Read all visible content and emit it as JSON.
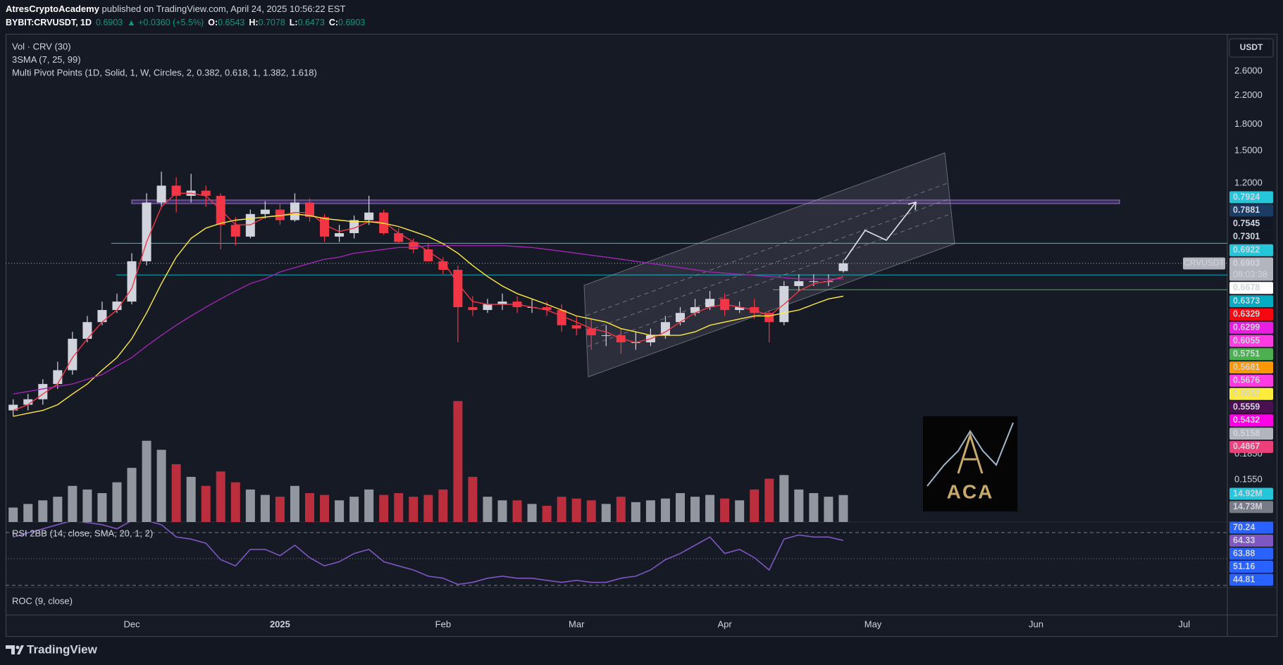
{
  "chart_data": {
    "type": "candlestick",
    "header": {
      "author": "AtresCryptoAcademy",
      "published": " published on TradingView.com, April 24, 2025 10:56:22 EST",
      "symbol": "BYBIT:CRVUSDT, 1D",
      "last": 0.6903,
      "change": "▲ +0.0360 (+5.5%)",
      "ohlc": [
        {
          "label": "O:",
          "value": 0.6543
        },
        {
          "label": "H:",
          "value": 0.7078
        },
        {
          "label": "L:",
          "value": 0.6473
        },
        {
          "label": "C:",
          "value": 0.6903
        }
      ]
    },
    "legend": [
      "Vol · CRV (30)",
      "3SMA (7, 25, 99)",
      "Multi Pivot Points (1D, Solid, 1, W, Circles, 2, 0.382, 0.618, 1, 1.382, 1.618)"
    ],
    "currency": "USDT",
    "categories": [
      null,
      null,
      null,
      null,
      null,
      null,
      null,
      null,
      "Dec",
      null,
      null,
      null,
      null,
      null,
      null,
      null,
      null,
      null,
      "2025",
      null,
      null,
      null,
      null,
      null,
      null,
      null,
      null,
      null,
      null,
      "Feb",
      null,
      null,
      null,
      null,
      null,
      null,
      null,
      null,
      "Mar",
      null,
      null,
      null,
      null,
      null,
      null,
      null,
      null,
      null,
      "Apr",
      null,
      null,
      null,
      null,
      null,
      null,
      null,
      null,
      null,
      "May",
      null,
      null,
      null,
      null,
      null,
      null,
      null,
      null,
      null,
      null,
      "Jun",
      null,
      null,
      null,
      null,
      null,
      null,
      null,
      null,
      null,
      "Jul"
    ],
    "log_scale": true,
    "grid": false,
    "ylim": [
      0.1157,
      3.35
    ],
    "yticks": [
      {
        "value": 2.6,
        "label": "2.6000"
      },
      {
        "value": 2.2,
        "label": "2.2000"
      },
      {
        "value": 1.8,
        "label": "1.8000"
      },
      {
        "value": 1.5,
        "label": "1.5000"
      },
      {
        "value": 1.2,
        "label": "1.2000"
      },
      {
        "value": 0.185,
        "label": "0.1850"
      },
      {
        "value": 0.155,
        "label": "0.1550"
      }
    ],
    "candles": {
      "up_color": "#d1d4dc",
      "down_color": "#f23645",
      "open": [
        0.25,
        0.26,
        0.27,
        0.3,
        0.33,
        0.41,
        0.46,
        0.5,
        0.53,
        0.7,
        1.05,
        1.18,
        1.1,
        1.14,
        1.1,
        0.9,
        0.83,
        0.97,
        1.0,
        0.93,
        1.05,
        0.95,
        0.83,
        0.85,
        0.93,
        0.98,
        0.85,
        0.8,
        0.76,
        0.7,
        0.66,
        0.51,
        0.5,
        0.52,
        0.53,
        0.51,
        0.51,
        0.5,
        0.45,
        0.44,
        0.42,
        0.42,
        0.4,
        0.4,
        0.42,
        0.46,
        0.49,
        0.51,
        0.54,
        0.5,
        0.51,
        0.49,
        0.46,
        0.59,
        0.61,
        0.61,
        0.6543,
        null,
        null,
        null,
        null,
        null,
        null,
        null,
        null,
        null,
        null,
        null,
        null,
        null,
        null,
        null,
        null,
        null,
        null,
        null,
        null,
        null,
        null,
        null
      ],
      "high": [
        0.27,
        0.28,
        0.31,
        0.35,
        0.43,
        0.48,
        0.53,
        0.56,
        0.74,
        1.12,
        1.3,
        1.25,
        1.28,
        1.18,
        1.12,
        0.95,
        1.0,
        1.06,
        1.04,
        1.12,
        1.08,
        0.97,
        0.9,
        0.96,
        1.1,
        1.0,
        0.88,
        0.82,
        0.79,
        0.72,
        0.68,
        0.55,
        0.54,
        0.56,
        0.55,
        0.54,
        0.53,
        0.52,
        0.48,
        0.47,
        0.45,
        0.44,
        0.43,
        0.44,
        0.48,
        0.51,
        0.54,
        0.57,
        0.56,
        0.53,
        0.54,
        0.5,
        0.61,
        0.64,
        0.64,
        0.64,
        0.7078,
        null,
        null,
        null,
        null,
        null,
        null,
        null,
        null,
        null,
        null,
        null,
        null,
        null,
        null,
        null,
        null,
        null,
        null,
        null,
        null,
        null,
        null,
        null
      ],
      "low": [
        0.24,
        0.25,
        0.26,
        0.29,
        0.32,
        0.4,
        0.45,
        0.49,
        0.52,
        0.68,
        1.02,
        0.98,
        1.05,
        1.02,
        0.76,
        0.78,
        0.82,
        0.94,
        0.9,
        0.92,
        0.92,
        0.8,
        0.8,
        0.82,
        0.9,
        0.84,
        0.79,
        0.74,
        0.7,
        0.64,
        0.4,
        0.48,
        0.49,
        0.5,
        0.49,
        0.49,
        0.48,
        0.43,
        0.42,
        0.38,
        0.39,
        0.37,
        0.38,
        0.39,
        0.41,
        0.45,
        0.48,
        0.5,
        0.48,
        0.49,
        0.47,
        0.4,
        0.45,
        0.57,
        0.59,
        0.59,
        0.6473,
        null,
        null,
        null,
        null,
        null,
        null,
        null,
        null,
        null,
        null,
        null,
        null,
        null,
        null,
        null,
        null,
        null,
        null,
        null,
        null,
        null,
        null,
        null
      ],
      "close": [
        0.26,
        0.27,
        0.3,
        0.33,
        0.41,
        0.46,
        0.5,
        0.53,
        0.7,
        1.05,
        1.18,
        1.1,
        1.14,
        1.1,
        0.9,
        0.83,
        0.97,
        1.0,
        0.93,
        1.05,
        0.95,
        0.83,
        0.85,
        0.93,
        0.98,
        0.85,
        0.8,
        0.76,
        0.7,
        0.66,
        0.51,
        0.5,
        0.52,
        0.53,
        0.51,
        0.51,
        0.5,
        0.45,
        0.44,
        0.42,
        0.42,
        0.4,
        0.4,
        0.42,
        0.46,
        0.49,
        0.51,
        0.54,
        0.5,
        0.51,
        0.49,
        0.46,
        0.59,
        0.61,
        0.61,
        0.61,
        0.6903,
        null,
        null,
        null,
        null,
        null,
        null,
        null,
        null,
        null,
        null,
        null,
        null,
        null,
        null,
        null,
        null,
        null,
        null,
        null,
        null,
        null,
        null,
        null
      ]
    },
    "sma": [
      {
        "color": "#f23645",
        "values": [
          0.25,
          0.26,
          0.28,
          0.3,
          0.36,
          0.41,
          0.46,
          0.5,
          0.58,
          0.8,
          1.02,
          1.12,
          1.12,
          1.1,
          1.0,
          0.9,
          0.9,
          0.95,
          0.96,
          0.98,
          0.98,
          0.9,
          0.86,
          0.88,
          0.92,
          0.92,
          0.85,
          0.8,
          0.75,
          0.7,
          0.6,
          0.53,
          0.52,
          0.52,
          0.52,
          0.51,
          0.5,
          0.48,
          0.46,
          0.44,
          0.43,
          0.41,
          0.4,
          0.41,
          0.43,
          0.46,
          0.49,
          0.51,
          0.52,
          0.51,
          0.5,
          0.48,
          0.52,
          0.57,
          0.6,
          0.61,
          0.63,
          null,
          null,
          null,
          null,
          null,
          null,
          null,
          null,
          null,
          null,
          null,
          null,
          null,
          null,
          null,
          null,
          null,
          null,
          null,
          null,
          null,
          null,
          null
        ]
      },
      {
        "color": "#ffeb3b",
        "values": [
          0.24,
          0.245,
          0.25,
          0.26,
          0.28,
          0.3,
          0.33,
          0.36,
          0.41,
          0.49,
          0.6,
          0.72,
          0.82,
          0.88,
          0.91,
          0.93,
          0.94,
          0.95,
          0.96,
          0.97,
          0.96,
          0.94,
          0.93,
          0.92,
          0.92,
          0.91,
          0.89,
          0.86,
          0.83,
          0.79,
          0.74,
          0.68,
          0.63,
          0.59,
          0.56,
          0.54,
          0.52,
          0.5,
          0.48,
          0.47,
          0.46,
          0.44,
          0.43,
          0.42,
          0.42,
          0.42,
          0.43,
          0.45,
          0.46,
          0.47,
          0.48,
          0.48,
          0.49,
          0.5,
          0.52,
          0.54,
          0.55,
          null,
          null,
          null,
          null,
          null,
          null,
          null,
          null,
          null,
          null,
          null,
          null,
          null,
          null,
          null,
          null,
          null,
          null,
          null,
          null,
          null,
          null,
          null
        ]
      },
      {
        "color": "#9c27b0",
        "values": [
          0.28,
          0.285,
          0.29,
          0.295,
          0.3,
          0.31,
          0.32,
          0.34,
          0.36,
          0.39,
          0.42,
          0.45,
          0.48,
          0.51,
          0.54,
          0.57,
          0.6,
          0.62,
          0.65,
          0.67,
          0.69,
          0.71,
          0.72,
          0.74,
          0.75,
          0.76,
          0.77,
          0.77,
          0.78,
          0.78,
          0.78,
          0.78,
          0.78,
          0.78,
          0.775,
          0.77,
          0.76,
          0.75,
          0.74,
          0.73,
          0.72,
          0.71,
          0.7,
          0.69,
          0.68,
          0.67,
          0.66,
          0.65,
          0.645,
          0.64,
          0.635,
          0.63,
          0.625,
          0.62,
          0.62,
          0.62,
          0.62,
          null,
          null,
          null,
          null,
          null,
          null,
          null,
          null,
          null,
          null,
          null,
          null,
          null,
          null,
          null,
          null,
          null,
          null,
          null,
          null,
          null,
          null,
          null
        ]
      }
    ],
    "symbol_tag": "CRVUSDT",
    "countdown": "08:03:38",
    "levels": [
      {
        "value": 0.7924,
        "color": "#26c6da",
        "text_color": "#131722",
        "line_style": "solid"
      },
      {
        "value": 0.7881,
        "color": "#1c3c63",
        "text_color": "#ffffff"
      },
      {
        "value": 0.7545,
        "color": "#131722",
        "text_color": "#ffffff"
      },
      {
        "value": 0.7301,
        "color": "#131722",
        "text_color": "#ffffff"
      },
      {
        "value": 0.6922,
        "color": "#26c6da",
        "text_color": "#131722"
      },
      {
        "value": 0.6903,
        "color": "#b2b5be",
        "text_color": "#131722",
        "line_style": "dotted",
        "current": true
      },
      {
        "value": 0.6678,
        "color": "#ffffff",
        "text_color": "#131722"
      },
      {
        "value": 0.6373,
        "color": "#00acc1",
        "text_color": "#131722",
        "line_style": "solid"
      },
      {
        "value": 0.6329,
        "color": "#f7070f",
        "text_color": "#131722"
      },
      {
        "value": 0.6299,
        "color": "#e91ee3",
        "text_color": "#ffffff"
      },
      {
        "value": 0.6055,
        "color": "#ff3be1",
        "text_color": "#ffffff"
      },
      {
        "value": 0.5751,
        "color": "#4caf50",
        "text_color": "#ffffff",
        "line_style": "solid"
      },
      {
        "value": 0.5681,
        "color": "#ff9800",
        "text_color": "#ffffff"
      },
      {
        "value": 0.5676,
        "color": "#ff3be1",
        "text_color": "#ffffff"
      },
      {
        "value": 0.5652,
        "color": "#ffeb3b",
        "text_color": "#131722"
      },
      {
        "value": 0.5559,
        "color": "#4a1050",
        "text_color": "#ffffff"
      },
      {
        "value": 0.5432,
        "color": "#ff00e6",
        "text_color": "#ffffff"
      },
      {
        "value": 0.5158,
        "color": "#b2b5be",
        "text_color": "#131722"
      },
      {
        "value": 0.4867,
        "color": "#ec407a",
        "text_color": "#ffffff"
      }
    ],
    "volume": {
      "ylim": [
        0,
        80
      ],
      "up_color": "rgba(178,181,190,0.8)",
      "down_color": "rgba(242,54,69,0.75)",
      "values": [
        8,
        10,
        12,
        14,
        20,
        18,
        16,
        22,
        30,
        45,
        40,
        32,
        25,
        20,
        28,
        22,
        18,
        15,
        14,
        20,
        16,
        15,
        12,
        14,
        18,
        15,
        16,
        14,
        15,
        18,
        67,
        25,
        14,
        12,
        12,
        10,
        9,
        14,
        13,
        12,
        10,
        14,
        11,
        12,
        13,
        16,
        14,
        15,
        13,
        12,
        18,
        24,
        26,
        18,
        16,
        14,
        14.92,
        null,
        null,
        null,
        null,
        null,
        null,
        null,
        null,
        null,
        null,
        null,
        null,
        null,
        null,
        null,
        null,
        null,
        null,
        null,
        null,
        null,
        null,
        null
      ],
      "badges": [
        {
          "value": 14.92,
          "label": "14.92M",
          "color": "#26c6da"
        },
        {
          "value": 14.73,
          "label": "14.73M",
          "color": "#787b86"
        }
      ]
    },
    "rsi": {
      "title": "RSI 2BB (14, close, SMA, 20, 1, 2)",
      "color": "#7e57c2",
      "ylim": [
        41.5,
        73.3
      ],
      "values": [
        66,
        68,
        70,
        72,
        74,
        73,
        72,
        70,
        74,
        74,
        72,
        66,
        65,
        63,
        55,
        52,
        60,
        60,
        57,
        62,
        56,
        52,
        54,
        58,
        60,
        54,
        52,
        50,
        47,
        46,
        43,
        44,
        46,
        47,
        46,
        46,
        45,
        44,
        45,
        44,
        44,
        46,
        47,
        50,
        55,
        58,
        62,
        66,
        58,
        60,
        56,
        50,
        65,
        67,
        66,
        66,
        64.33,
        null,
        null,
        null,
        null,
        null,
        null,
        null,
        null,
        null,
        null,
        null,
        null,
        null,
        null,
        null,
        null,
        null,
        null,
        null,
        null,
        null,
        null,
        null
      ],
      "badges": [
        {
          "value": 70.24,
          "color": "#2962ff"
        },
        {
          "value": 64.33,
          "color": "#7e57c2"
        },
        {
          "value": 63.88,
          "color": "#2962ff"
        },
        {
          "value": 51.16,
          "color": "#2962ff"
        },
        {
          "value": 44.81,
          "color": "#2962ff"
        }
      ]
    },
    "roc": {
      "title": "ROC (9, close)"
    },
    "logo": "ACA",
    "brand": "TradingView"
  }
}
